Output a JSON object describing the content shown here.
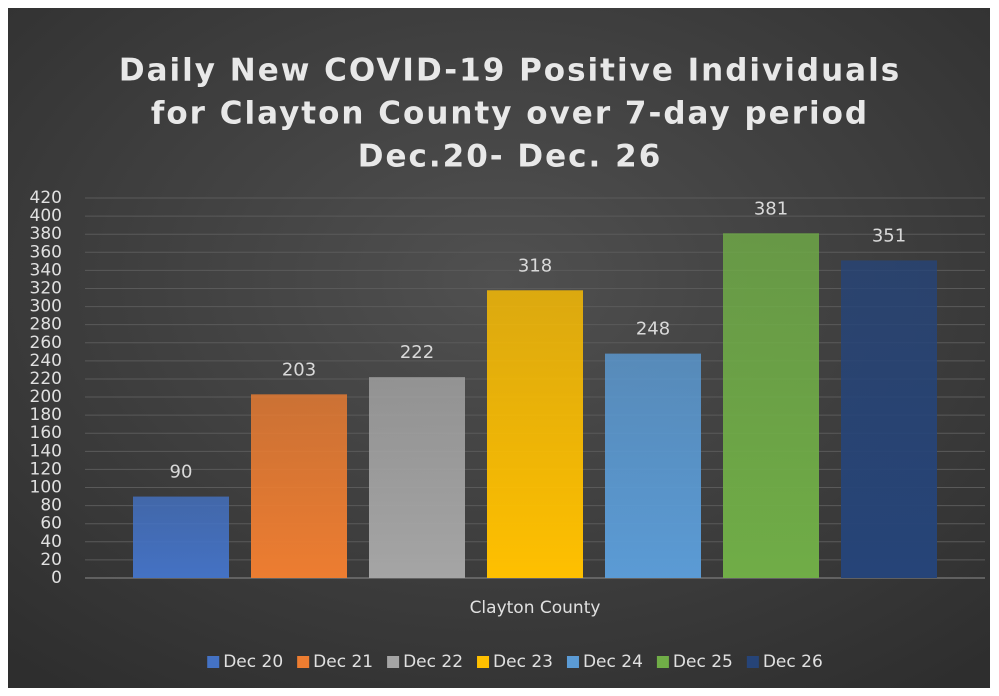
{
  "chart_data": {
    "type": "bar",
    "title": [
      "Daily New COVID-19 Positive Individuals",
      "for Clayton County over 7-day period",
      "Dec.20- Dec. 26"
    ],
    "categories": [
      "Clayton County"
    ],
    "series": [
      {
        "name": "Dec 20",
        "color": "#4472c4",
        "values": [
          90
        ]
      },
      {
        "name": "Dec 21",
        "color": "#ed7d31",
        "values": [
          203
        ]
      },
      {
        "name": "Dec 22",
        "color": "#a5a5a5",
        "values": [
          222
        ]
      },
      {
        "name": "Dec 23",
        "color": "#ffc000",
        "values": [
          318
        ]
      },
      {
        "name": "Dec 24",
        "color": "#5b9bd5",
        "values": [
          248
        ]
      },
      {
        "name": "Dec 25",
        "color": "#70ad47",
        "values": [
          381
        ]
      },
      {
        "name": "Dec 26",
        "color": "#264478",
        "values": [
          351
        ]
      }
    ],
    "ylim": [
      0,
      420
    ],
    "yticks": [
      0,
      20,
      40,
      60,
      80,
      100,
      120,
      140,
      160,
      180,
      200,
      220,
      240,
      260,
      280,
      300,
      320,
      340,
      360,
      380,
      400,
      420
    ],
    "grid": true,
    "legend": "bottom",
    "data_labels": true
  }
}
